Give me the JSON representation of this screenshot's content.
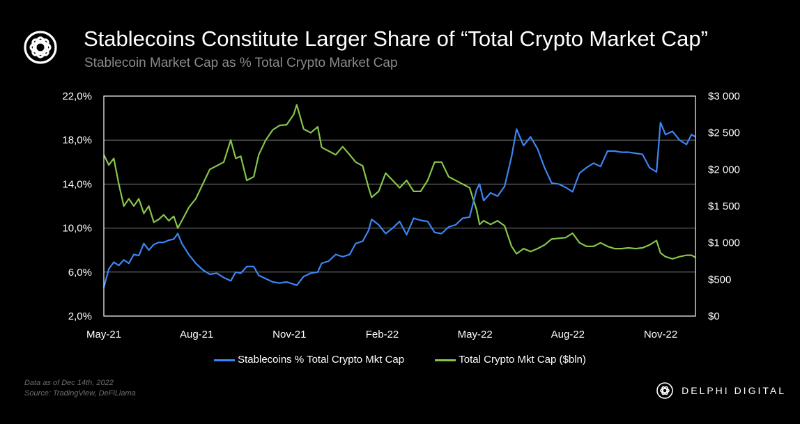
{
  "header": {
    "title": "Stablecoins Constitute Larger Share of “Total Crypto Market Cap”",
    "subtitle": "Stablecoin Market Cap as % Total Crypto Market Cap"
  },
  "footer": {
    "note_line1": "Data as of Dec 14th, 2022",
    "note_line2": "Source: TradingView,  DeFiLlama",
    "brand": "DELPHI DIGITAL"
  },
  "colors": {
    "background": "#000000",
    "stable_series": "#3b86f5",
    "total_series": "#86c64a",
    "grid": "#7f7f7f",
    "plot_border": "#ffffff"
  },
  "chart_data": {
    "type": "line",
    "grid": true,
    "legend_position": "bottom",
    "x_tick_labels": [
      "May-21",
      "Aug-21",
      "Nov-21",
      "Feb-22",
      "May-22",
      "Aug-22",
      "Nov-22"
    ],
    "x_range": [
      "2021-05-01",
      "2022-12-14"
    ],
    "y_left": {
      "range": [
        2,
        22
      ],
      "ticks": [
        2,
        6,
        10,
        14,
        18,
        22
      ],
      "tick_labels": [
        "2,0%",
        "6,0%",
        "10,0%",
        "14,0%",
        "18,0%",
        "22,0%"
      ]
    },
    "y_right": {
      "range": [
        0,
        3000
      ],
      "ticks": [
        0,
        500,
        1000,
        1500,
        2000,
        2500,
        3000
      ],
      "tick_labels": [
        "$0",
        "$500",
        "$1 000",
        "$1 500",
        "$2 000",
        "$2 500",
        "$3 000"
      ]
    },
    "series": [
      {
        "name": "Stablecoins % Total Crypto Mkt Cap",
        "axis": "left",
        "color": "#3b86f5",
        "points": [
          [
            "2021-05-01",
            4.6
          ],
          [
            "2021-05-06",
            6.3
          ],
          [
            "2021-05-11",
            6.9
          ],
          [
            "2021-05-16",
            6.6
          ],
          [
            "2021-05-21",
            7.1
          ],
          [
            "2021-05-26",
            6.8
          ],
          [
            "2021-05-31",
            7.6
          ],
          [
            "2021-06-05",
            7.5
          ],
          [
            "2021-06-10",
            8.6
          ],
          [
            "2021-06-15",
            8.0
          ],
          [
            "2021-06-20",
            8.5
          ],
          [
            "2021-06-25",
            8.7
          ],
          [
            "2021-06-30",
            8.7
          ],
          [
            "2021-07-05",
            8.9
          ],
          [
            "2021-07-10",
            9.0
          ],
          [
            "2021-07-14",
            9.5
          ],
          [
            "2021-07-18",
            8.6
          ],
          [
            "2021-07-25",
            7.6
          ],
          [
            "2021-08-01",
            6.8
          ],
          [
            "2021-08-08",
            6.2
          ],
          [
            "2021-08-15",
            5.8
          ],
          [
            "2021-08-22",
            5.9
          ],
          [
            "2021-08-29",
            5.5
          ],
          [
            "2021-09-05",
            5.2
          ],
          [
            "2021-09-10",
            6.0
          ],
          [
            "2021-09-15",
            5.9
          ],
          [
            "2021-09-21",
            6.5
          ],
          [
            "2021-09-28",
            6.5
          ],
          [
            "2021-10-03",
            5.7
          ],
          [
            "2021-10-10",
            5.4
          ],
          [
            "2021-10-17",
            5.1
          ],
          [
            "2021-10-24",
            5.0
          ],
          [
            "2021-10-31",
            5.1
          ],
          [
            "2021-11-07",
            4.9
          ],
          [
            "2021-11-10",
            4.8
          ],
          [
            "2021-11-17",
            5.6
          ],
          [
            "2021-11-24",
            5.9
          ],
          [
            "2021-12-01",
            6.0
          ],
          [
            "2021-12-05",
            6.8
          ],
          [
            "2021-12-12",
            7.0
          ],
          [
            "2021-12-19",
            7.6
          ],
          [
            "2021-12-26",
            7.4
          ],
          [
            "2022-01-02",
            7.6
          ],
          [
            "2022-01-08",
            8.6
          ],
          [
            "2022-01-15",
            8.8
          ],
          [
            "2022-01-21",
            9.8
          ],
          [
            "2022-01-24",
            10.8
          ],
          [
            "2022-01-31",
            10.3
          ],
          [
            "2022-02-07",
            9.5
          ],
          [
            "2022-02-14",
            10.0
          ],
          [
            "2022-02-21",
            10.6
          ],
          [
            "2022-02-28",
            9.4
          ],
          [
            "2022-03-07",
            10.9
          ],
          [
            "2022-03-14",
            10.7
          ],
          [
            "2022-03-21",
            10.6
          ],
          [
            "2022-03-28",
            9.6
          ],
          [
            "2022-04-04",
            9.5
          ],
          [
            "2022-04-11",
            10.1
          ],
          [
            "2022-04-18",
            10.3
          ],
          [
            "2022-04-25",
            10.9
          ],
          [
            "2022-05-02",
            11.0
          ],
          [
            "2022-05-09",
            13.5
          ],
          [
            "2022-05-12",
            14.0
          ],
          [
            "2022-05-16",
            12.5
          ],
          [
            "2022-05-23",
            13.2
          ],
          [
            "2022-05-30",
            12.9
          ],
          [
            "2022-06-06",
            13.8
          ],
          [
            "2022-06-13",
            16.5
          ],
          [
            "2022-06-18",
            19.0
          ],
          [
            "2022-06-25",
            17.5
          ],
          [
            "2022-07-02",
            18.3
          ],
          [
            "2022-07-09",
            17.2
          ],
          [
            "2022-07-16",
            15.5
          ],
          [
            "2022-07-23",
            14.1
          ],
          [
            "2022-07-30",
            14.0
          ],
          [
            "2022-08-06",
            13.7
          ],
          [
            "2022-08-13",
            13.3
          ],
          [
            "2022-08-20",
            15.0
          ],
          [
            "2022-08-27",
            15.5
          ],
          [
            "2022-09-03",
            15.9
          ],
          [
            "2022-09-10",
            15.6
          ],
          [
            "2022-09-17",
            17.0
          ],
          [
            "2022-09-24",
            17.0
          ],
          [
            "2022-10-01",
            16.9
          ],
          [
            "2022-10-08",
            16.9
          ],
          [
            "2022-10-15",
            16.8
          ],
          [
            "2022-10-22",
            16.7
          ],
          [
            "2022-10-29",
            15.5
          ],
          [
            "2022-11-05",
            15.1
          ],
          [
            "2022-11-09",
            19.6
          ],
          [
            "2022-11-14",
            18.5
          ],
          [
            "2022-11-21",
            18.8
          ],
          [
            "2022-11-28",
            18.0
          ],
          [
            "2022-12-05",
            17.6
          ],
          [
            "2022-12-10",
            18.5
          ],
          [
            "2022-12-14",
            18.3
          ]
        ]
      },
      {
        "name": "Total Crypto Mkt Cap ($bln)",
        "axis": "right",
        "color": "#86c64a",
        "points": [
          [
            "2021-05-01",
            2200
          ],
          [
            "2021-05-06",
            2060
          ],
          [
            "2021-05-11",
            2150
          ],
          [
            "2021-05-16",
            1800
          ],
          [
            "2021-05-21",
            1500
          ],
          [
            "2021-05-26",
            1600
          ],
          [
            "2021-05-31",
            1500
          ],
          [
            "2021-06-05",
            1600
          ],
          [
            "2021-06-10",
            1400
          ],
          [
            "2021-06-15",
            1500
          ],
          [
            "2021-06-20",
            1280
          ],
          [
            "2021-06-25",
            1320
          ],
          [
            "2021-06-30",
            1380
          ],
          [
            "2021-07-05",
            1300
          ],
          [
            "2021-07-10",
            1360
          ],
          [
            "2021-07-14",
            1200
          ],
          [
            "2021-07-18",
            1300
          ],
          [
            "2021-07-25",
            1480
          ],
          [
            "2021-08-01",
            1600
          ],
          [
            "2021-08-08",
            1800
          ],
          [
            "2021-08-15",
            2000
          ],
          [
            "2021-08-22",
            2050
          ],
          [
            "2021-08-29",
            2100
          ],
          [
            "2021-09-05",
            2400
          ],
          [
            "2021-09-10",
            2150
          ],
          [
            "2021-09-15",
            2180
          ],
          [
            "2021-09-21",
            1850
          ],
          [
            "2021-09-28",
            1900
          ],
          [
            "2021-10-03",
            2200
          ],
          [
            "2021-10-10",
            2400
          ],
          [
            "2021-10-17",
            2540
          ],
          [
            "2021-10-24",
            2600
          ],
          [
            "2021-10-31",
            2610
          ],
          [
            "2021-11-07",
            2750
          ],
          [
            "2021-11-10",
            2880
          ],
          [
            "2021-11-17",
            2550
          ],
          [
            "2021-11-24",
            2500
          ],
          [
            "2021-12-01",
            2580
          ],
          [
            "2021-12-05",
            2300
          ],
          [
            "2021-12-12",
            2250
          ],
          [
            "2021-12-19",
            2200
          ],
          [
            "2021-12-26",
            2310
          ],
          [
            "2022-01-02",
            2200
          ],
          [
            "2022-01-08",
            2100
          ],
          [
            "2022-01-15",
            2050
          ],
          [
            "2022-01-21",
            1750
          ],
          [
            "2022-01-24",
            1620
          ],
          [
            "2022-01-31",
            1700
          ],
          [
            "2022-02-07",
            1950
          ],
          [
            "2022-02-14",
            1850
          ],
          [
            "2022-02-21",
            1750
          ],
          [
            "2022-02-28",
            1850
          ],
          [
            "2022-03-07",
            1700
          ],
          [
            "2022-03-14",
            1700
          ],
          [
            "2022-03-21",
            1850
          ],
          [
            "2022-03-28",
            2100
          ],
          [
            "2022-04-04",
            2100
          ],
          [
            "2022-04-11",
            1900
          ],
          [
            "2022-04-18",
            1850
          ],
          [
            "2022-04-25",
            1800
          ],
          [
            "2022-05-02",
            1750
          ],
          [
            "2022-05-09",
            1450
          ],
          [
            "2022-05-12",
            1250
          ],
          [
            "2022-05-16",
            1300
          ],
          [
            "2022-05-23",
            1250
          ],
          [
            "2022-05-30",
            1300
          ],
          [
            "2022-06-06",
            1230
          ],
          [
            "2022-06-13",
            950
          ],
          [
            "2022-06-18",
            850
          ],
          [
            "2022-06-25",
            920
          ],
          [
            "2022-07-02",
            880
          ],
          [
            "2022-07-09",
            920
          ],
          [
            "2022-07-16",
            970
          ],
          [
            "2022-07-23",
            1050
          ],
          [
            "2022-07-30",
            1060
          ],
          [
            "2022-08-06",
            1070
          ],
          [
            "2022-08-13",
            1130
          ],
          [
            "2022-08-20",
            1000
          ],
          [
            "2022-08-27",
            950
          ],
          [
            "2022-09-03",
            950
          ],
          [
            "2022-09-10",
            1000
          ],
          [
            "2022-09-17",
            950
          ],
          [
            "2022-09-24",
            920
          ],
          [
            "2022-10-01",
            920
          ],
          [
            "2022-10-08",
            930
          ],
          [
            "2022-10-15",
            920
          ],
          [
            "2022-10-22",
            930
          ],
          [
            "2022-10-29",
            970
          ],
          [
            "2022-11-05",
            1030
          ],
          [
            "2022-11-09",
            860
          ],
          [
            "2022-11-14",
            810
          ],
          [
            "2022-11-21",
            780
          ],
          [
            "2022-11-28",
            810
          ],
          [
            "2022-12-05",
            830
          ],
          [
            "2022-12-10",
            830
          ],
          [
            "2022-12-14",
            800
          ]
        ]
      }
    ]
  }
}
